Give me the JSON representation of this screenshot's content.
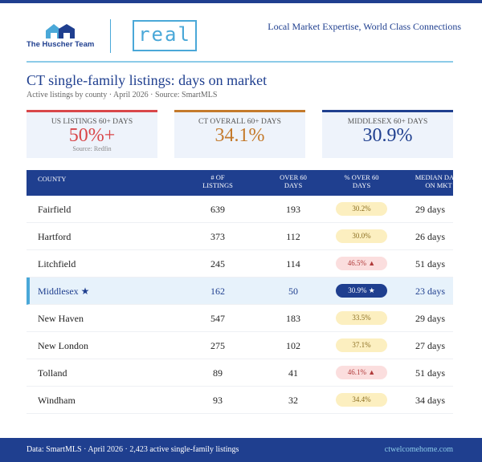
{
  "header": {
    "brand": "The Huscher Team",
    "partner": "real",
    "tagline": "Local Market Expertise, World Class Connections"
  },
  "title": "CT single-family listings: days on market",
  "subtitle": "Active listings by county · April 2026 · Source: SmartMLS",
  "cards": [
    {
      "label": "US LISTINGS 60+ DAYS",
      "value": "50%+",
      "note": "Source: Redfin"
    },
    {
      "label": "CT OVERALL 60+ DAYS",
      "value": "34.1%"
    },
    {
      "label": "MIDDLESEX 60+ DAYS",
      "value": "30.9%"
    }
  ],
  "table": {
    "columns": [
      "COUNTY",
      "# OF LISTINGS",
      "OVER 60 DAYS",
      "% OVER 60 DAYS",
      "MEDIAN DAYS ON MKT"
    ],
    "rows": [
      [
        "Fairfield",
        639,
        193,
        "30.2%",
        "29 days"
      ],
      [
        "Hartford",
        373,
        112,
        "30.0%",
        "26 days"
      ],
      [
        "Litchfield",
        245,
        114,
        "46.5% ▲",
        "51 days"
      ],
      [
        "Middlesex ★",
        162,
        50,
        "30.9% ★",
        "23 days"
      ],
      [
        "New Haven",
        547,
        183,
        "33.5%",
        "29 days"
      ],
      [
        "New London",
        275,
        102,
        "37.1%",
        "27 days"
      ],
      [
        "Tolland",
        89,
        41,
        "46.1% ▲",
        "51 days"
      ],
      [
        "Windham",
        93,
        32,
        "34.4%",
        "34 days"
      ]
    ]
  },
  "footer": {
    "source": "Data: SmartMLS · April 2026 · 2,423 active single-family listings",
    "site": "ctwelcomehome.com"
  }
}
